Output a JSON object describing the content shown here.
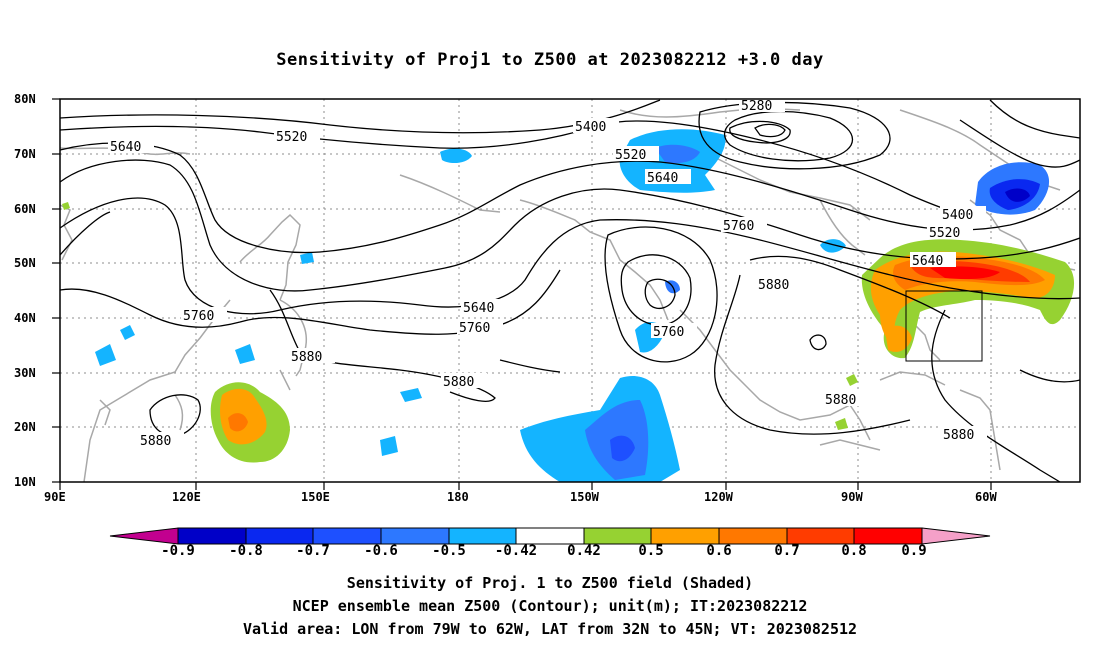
{
  "title": "Sensitivity of Proj1 to Z500 at 2023082212 +3.0 day",
  "lat_labels": [
    "80N",
    "70N",
    "60N",
    "50N",
    "40N",
    "30N",
    "20N",
    "10N"
  ],
  "lon_labels": [
    "90E",
    "120E",
    "150E",
    "180",
    "150W",
    "120W",
    "90W",
    "60W"
  ],
  "colorbar": {
    "ticks": [
      "-0.9",
      "-0.8",
      "-0.7",
      "-0.6",
      "-0.5",
      "-0.42",
      "0.42",
      "0.5",
      "0.6",
      "0.7",
      "0.8",
      "0.9"
    ],
    "colors": [
      "#c2008f",
      "#0000c8",
      "#0a28f0",
      "#1e50ff",
      "#2d78ff",
      "#14b4ff",
      "#ffffff",
      "#96d232",
      "#ffa000",
      "#ff7800",
      "#ff3c00",
      "#ff0000",
      "#f5a0c8"
    ]
  },
  "contour_labels": [
    "5280",
    "5400",
    "5520",
    "5640",
    "5760",
    "5880"
  ],
  "contours_shown": [
    "5640",
    "5520",
    "5400",
    "5280",
    "5520",
    "5640",
    "5760",
    "5640",
    "5760",
    "5760",
    "5880",
    "5880",
    "5880",
    "5760",
    "5880",
    "5880",
    "5400",
    "5520",
    "5640",
    "5880"
  ],
  "captions": [
    "Sensitivity of Proj. 1 to Z500 field (Shaded)",
    "NCEP ensemble mean Z500 (Contour); unit(m); IT:2023082212",
    "Valid area: LON from 79W to 62W, LAT from 32N to 45N; VT: 2023082512"
  ]
}
